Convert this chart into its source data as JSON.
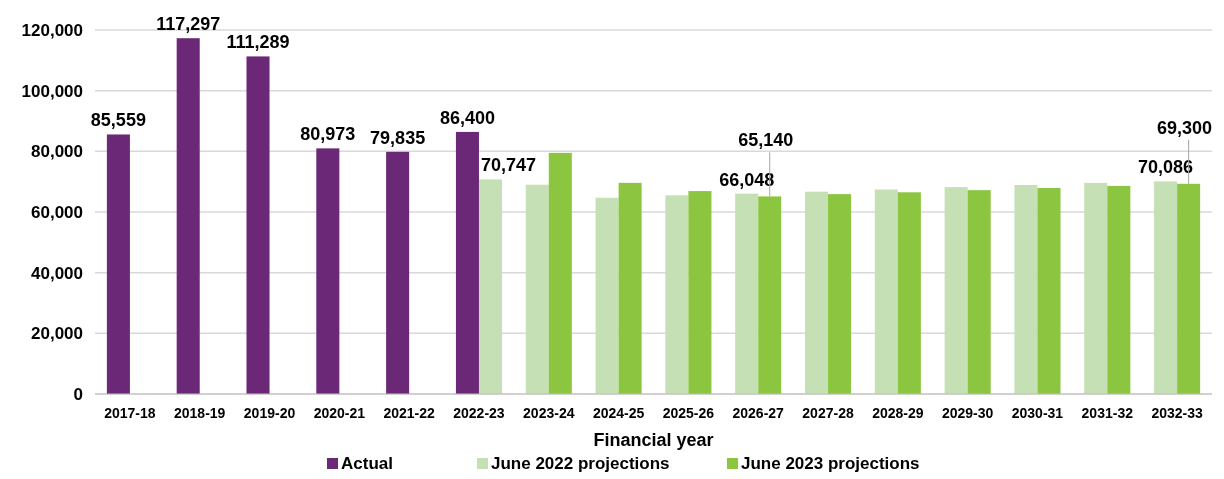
{
  "chart_data": {
    "type": "bar",
    "xlabel": "Financial year",
    "categories": [
      "2017-18",
      "2018-19",
      "2019-20",
      "2020-21",
      "2021-22",
      "2022-23",
      "2023-24",
      "2024-25",
      "2025-26",
      "2026-27",
      "2027-28",
      "2028-29",
      "2029-30",
      "2030-31",
      "2031-32",
      "2032-33"
    ],
    "series": [
      {
        "name": "Actual",
        "color": "#6b2877",
        "values": [
          85559,
          117297,
          111289,
          80973,
          79835,
          86400,
          null,
          null,
          null,
          null,
          null,
          null,
          null,
          null,
          null,
          null
        ],
        "value_labels": [
          "85,559",
          "117,297",
          "111,289",
          "80,973",
          "79,835",
          "86,400",
          null,
          null,
          null,
          null,
          null,
          null,
          null,
          null,
          null,
          null
        ]
      },
      {
        "name": "June 2022 projections",
        "color": "#c5e0b4",
        "values": [
          null,
          null,
          null,
          null,
          null,
          70747,
          69000,
          64700,
          65500,
          66048,
          66700,
          67400,
          68200,
          68900,
          69600,
          70086
        ],
        "value_labels": [
          null,
          null,
          null,
          null,
          null,
          "70,747",
          null,
          null,
          null,
          "66,048",
          null,
          null,
          null,
          null,
          null,
          "70,086"
        ]
      },
      {
        "name": "June 2023 projections",
        "color": "#8cc641",
        "values": [
          null,
          null,
          null,
          null,
          null,
          null,
          79500,
          69600,
          66900,
          65140,
          65900,
          66500,
          67200,
          67900,
          68600,
          69300
        ],
        "value_labels": [
          null,
          null,
          null,
          null,
          null,
          null,
          null,
          null,
          null,
          "65,140",
          null,
          null,
          null,
          null,
          null,
          "69,300"
        ]
      }
    ],
    "ylim": [
      0,
      120000
    ],
    "yticks": [
      {
        "value": 0,
        "label": "0"
      },
      {
        "value": 20000,
        "label": "20,000"
      },
      {
        "value": 40000,
        "label": "40,000"
      },
      {
        "value": 60000,
        "label": "60,000"
      },
      {
        "value": 80000,
        "label": "80,000"
      },
      {
        "value": 100000,
        "label": "100,000"
      },
      {
        "value": 120000,
        "label": "120,000"
      }
    ],
    "grid": "y",
    "legend": "bottom"
  }
}
